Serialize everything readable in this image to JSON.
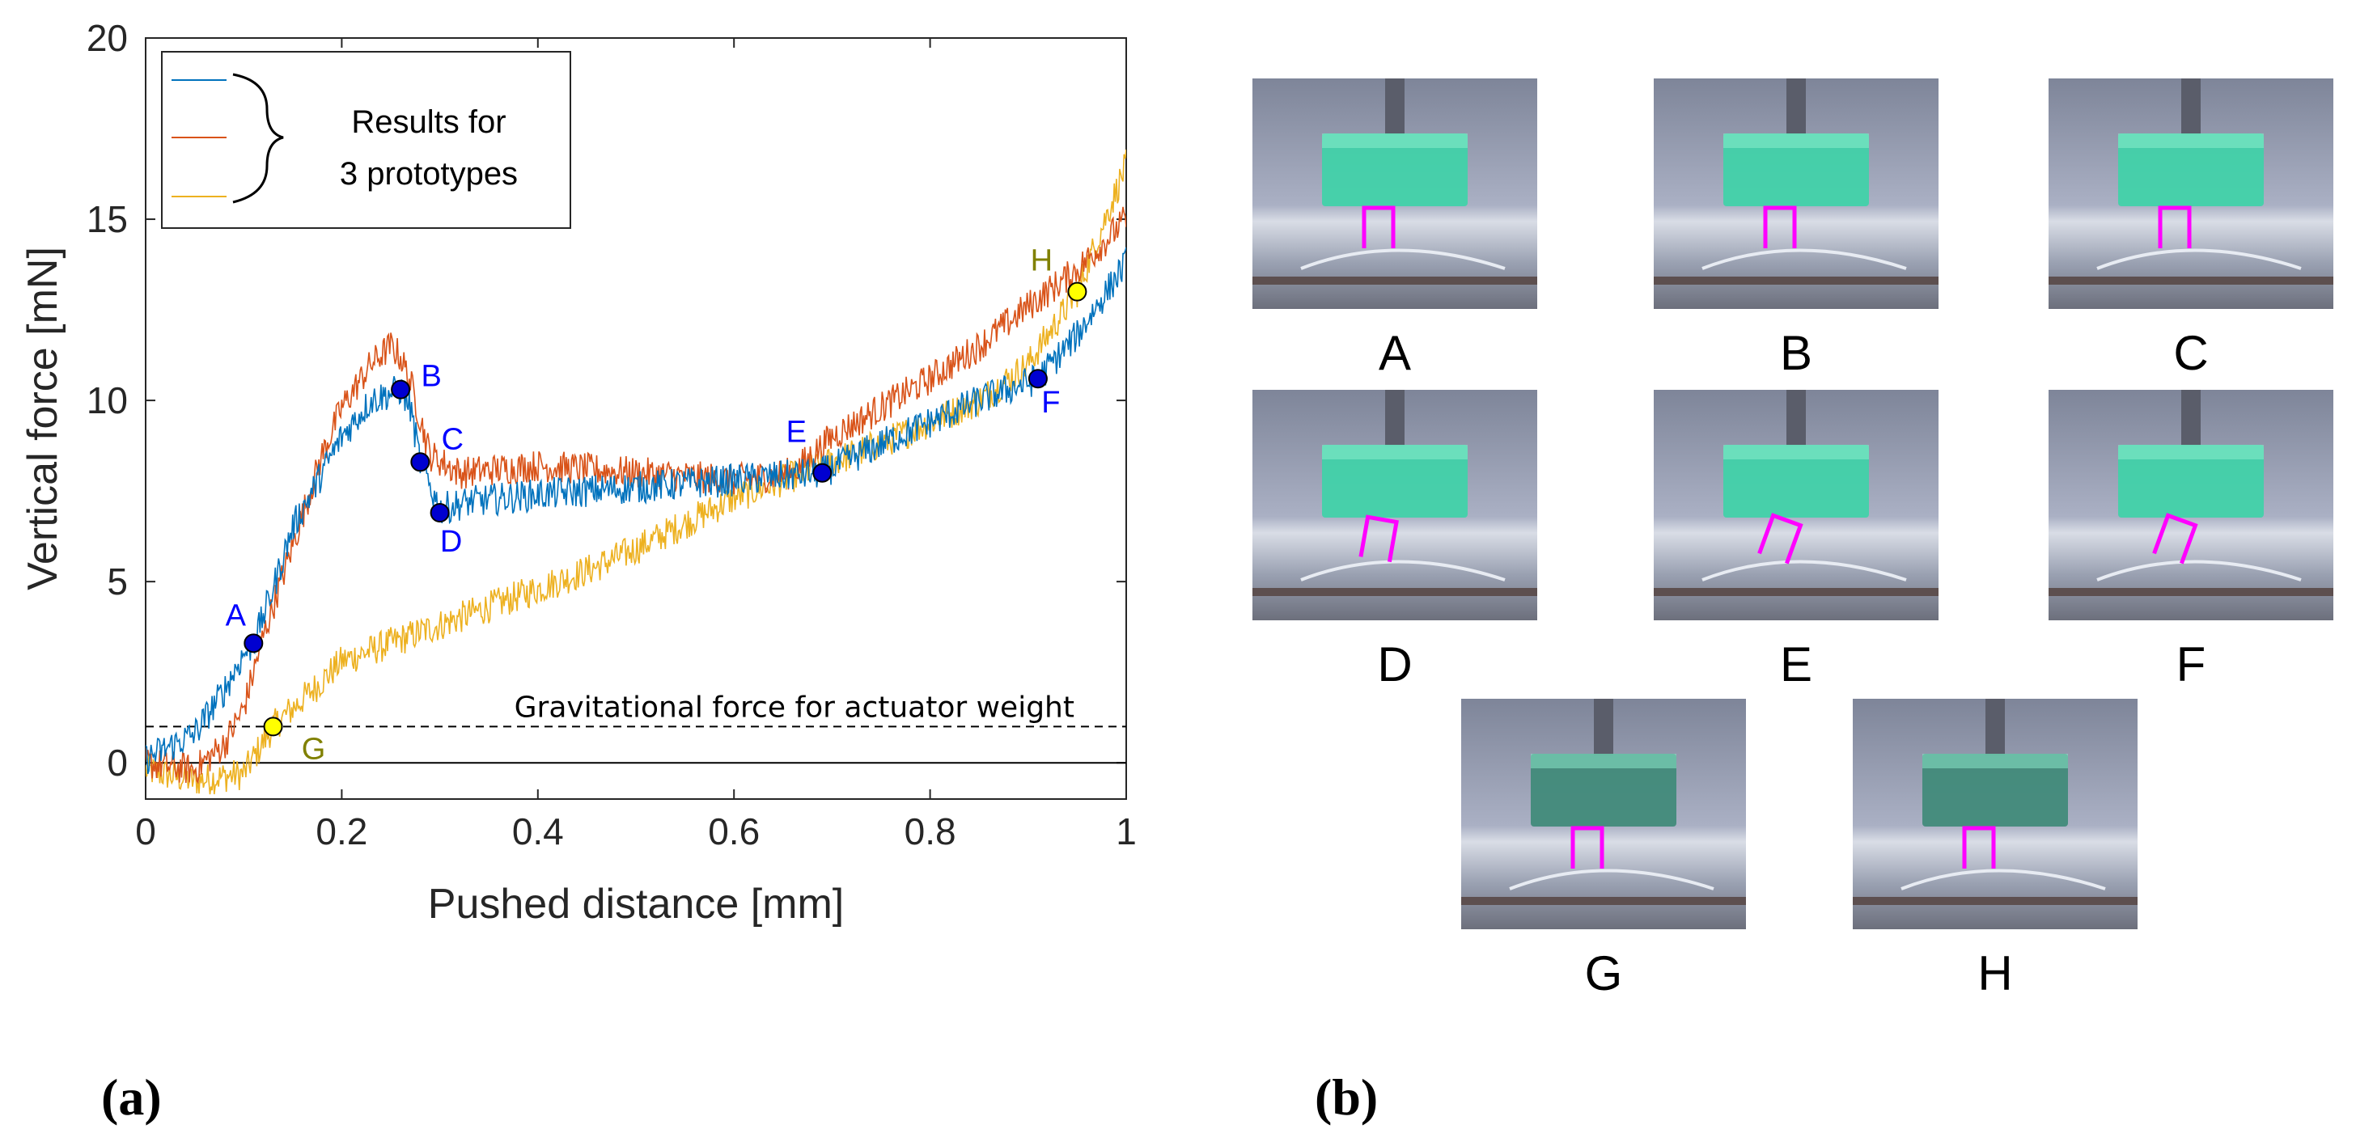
{
  "panel_labels": {
    "a": "(a)",
    "b": "(b)"
  },
  "chart_data": {
    "type": "line",
    "title": "",
    "xlabel": "Pushed distance [mm]",
    "ylabel": "Vertical force [mN]",
    "xlim": [
      0,
      1
    ],
    "ylim": [
      -1,
      20
    ],
    "xticks": [
      0,
      0.2,
      0.4,
      0.6,
      0.8,
      1
    ],
    "xtick_labels": [
      "0",
      "0.2",
      "0.4",
      "0.6",
      "0.8",
      "1"
    ],
    "yticks": [
      0,
      5,
      10,
      15,
      20
    ],
    "ytick_labels": [
      "0",
      "5",
      "10",
      "15",
      "20"
    ],
    "grid": false,
    "legend": {
      "placement": "top-left",
      "text_line1": "Results for",
      "text_line2": "3 prototypes"
    },
    "series": [
      {
        "color": "#0072BD",
        "points": [
          [
            0,
            0.1
          ],
          [
            0.05,
            0.8
          ],
          [
            0.08,
            2.0
          ],
          [
            0.1,
            3.0
          ],
          [
            0.11,
            3.3
          ],
          [
            0.13,
            4.8
          ],
          [
            0.15,
            6.5
          ],
          [
            0.18,
            8.0
          ],
          [
            0.2,
            9.0
          ],
          [
            0.23,
            10.0
          ],
          [
            0.25,
            10.2
          ],
          [
            0.26,
            10.3
          ],
          [
            0.27,
            9.8
          ],
          [
            0.28,
            8.3
          ],
          [
            0.3,
            7.0
          ],
          [
            0.33,
            7.2
          ],
          [
            0.4,
            7.4
          ],
          [
            0.5,
            7.6
          ],
          [
            0.6,
            7.8
          ],
          [
            0.69,
            8.0
          ],
          [
            0.75,
            8.8
          ],
          [
            0.8,
            9.4
          ],
          [
            0.85,
            10.0
          ],
          [
            0.91,
            10.6
          ],
          [
            0.95,
            11.8
          ],
          [
            1,
            13.8
          ]
        ]
      },
      {
        "color": "#D95319",
        "points": [
          [
            0,
            0
          ],
          [
            0.05,
            -0.2
          ],
          [
            0.08,
            0.5
          ],
          [
            0.1,
            1.5
          ],
          [
            0.12,
            3.5
          ],
          [
            0.15,
            6.0
          ],
          [
            0.18,
            8.5
          ],
          [
            0.2,
            9.8
          ],
          [
            0.23,
            11.0
          ],
          [
            0.25,
            11.5
          ],
          [
            0.26,
            11.2
          ],
          [
            0.27,
            10.5
          ],
          [
            0.29,
            8.5
          ],
          [
            0.32,
            8.0
          ],
          [
            0.4,
            8.2
          ],
          [
            0.5,
            8.0
          ],
          [
            0.6,
            7.8
          ],
          [
            0.66,
            8.0
          ],
          [
            0.7,
            9.0
          ],
          [
            0.75,
            9.8
          ],
          [
            0.8,
            10.6
          ],
          [
            0.85,
            11.5
          ],
          [
            0.9,
            12.6
          ],
          [
            0.95,
            13.6
          ],
          [
            1,
            15.0
          ]
        ]
      },
      {
        "color": "#EDB120",
        "points": [
          [
            0,
            -0.2
          ],
          [
            0.05,
            -0.5
          ],
          [
            0.1,
            -0.3
          ],
          [
            0.13,
            1.0
          ],
          [
            0.17,
            2.0
          ],
          [
            0.2,
            2.8
          ],
          [
            0.25,
            3.3
          ],
          [
            0.3,
            3.8
          ],
          [
            0.35,
            4.3
          ],
          [
            0.4,
            4.8
          ],
          [
            0.45,
            5.3
          ],
          [
            0.5,
            5.9
          ],
          [
            0.55,
            6.6
          ],
          [
            0.6,
            7.3
          ],
          [
            0.65,
            7.8
          ],
          [
            0.7,
            8.3
          ],
          [
            0.75,
            8.8
          ],
          [
            0.8,
            9.4
          ],
          [
            0.85,
            10.0
          ],
          [
            0.9,
            11.0
          ],
          [
            0.95,
            13.0
          ],
          [
            1,
            16.5
          ]
        ]
      }
    ],
    "reference_lines": [
      {
        "y": 1.0,
        "style": "dashed",
        "label": "Gravitational force for actuator weight"
      },
      {
        "y": 0,
        "style": "solid",
        "label": ""
      }
    ],
    "markers": [
      {
        "label": "A",
        "x": 0.11,
        "y": 3.3,
        "fill": "#0000D0",
        "text_color": "#0000FF"
      },
      {
        "label": "B",
        "x": 0.26,
        "y": 10.3,
        "fill": "#0000D0",
        "text_color": "#0000FF"
      },
      {
        "label": "C",
        "x": 0.28,
        "y": 8.3,
        "fill": "#0000D0",
        "text_color": "#0000FF"
      },
      {
        "label": "D",
        "x": 0.3,
        "y": 6.9,
        "fill": "#0000D0",
        "text_color": "#0000FF"
      },
      {
        "label": "E",
        "x": 0.69,
        "y": 8.0,
        "fill": "#0000D0",
        "text_color": "#0000FF"
      },
      {
        "label": "F",
        "x": 0.91,
        "y": 10.6,
        "fill": "#0000D0",
        "text_color": "#0000FF"
      },
      {
        "label": "G",
        "x": 0.13,
        "y": 1.0,
        "fill": "#FFFF00",
        "text_color": "#808000"
      },
      {
        "label": "H",
        "x": 0.95,
        "y": 13.0,
        "fill": "#FFFF00",
        "text_color": "#808000"
      }
    ]
  },
  "photos": [
    {
      "label": "A",
      "bracket_tilt": 0
    },
    {
      "label": "B",
      "bracket_tilt": 0
    },
    {
      "label": "C",
      "bracket_tilt": 0
    },
    {
      "label": "D",
      "bracket_tilt": 10
    },
    {
      "label": "E",
      "bracket_tilt": 20
    },
    {
      "label": "F",
      "bracket_tilt": 20
    },
    {
      "label": "G",
      "bracket_tilt": 0
    },
    {
      "label": "H",
      "bracket_tilt": 0
    }
  ]
}
